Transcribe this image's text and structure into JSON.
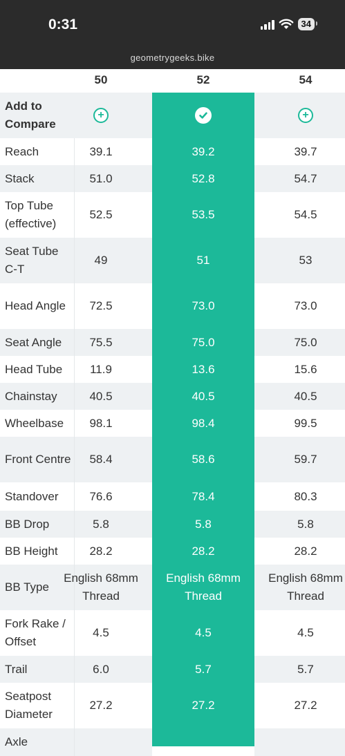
{
  "status": {
    "time": "0:31",
    "battery": "34",
    "url": "geometrygeeks.bike"
  },
  "columns": [
    "50",
    "52",
    "54"
  ],
  "compare": {
    "label_line1": "Add to",
    "label_line2": "Compare"
  },
  "rows": [
    {
      "label": "Reach",
      "values": [
        "39.1",
        "39.2",
        "39.7"
      ]
    },
    {
      "label": "Stack",
      "values": [
        "51.0",
        "52.8",
        "54.7"
      ]
    },
    {
      "label": "Top Tube (effective)",
      "values": [
        "52.5",
        "53.5",
        "54.5"
      ]
    },
    {
      "label": "Seat Tube C-T",
      "values": [
        "49",
        "51",
        "53"
      ]
    },
    {
      "label": "Head Angle",
      "values": [
        "72.5",
        "73.0",
        "73.0"
      ]
    },
    {
      "label": "Seat Angle",
      "values": [
        "75.5",
        "75.0",
        "75.0"
      ]
    },
    {
      "label": "Head Tube",
      "values": [
        "11.9",
        "13.6",
        "15.6"
      ]
    },
    {
      "label": "Chainstay",
      "values": [
        "40.5",
        "40.5",
        "40.5"
      ]
    },
    {
      "label": "Wheelbase",
      "values": [
        "98.1",
        "98.4",
        "99.5"
      ]
    },
    {
      "label": "Front Centre",
      "values": [
        "58.4",
        "58.6",
        "59.7"
      ]
    },
    {
      "label": "Standover",
      "values": [
        "76.6",
        "78.4",
        "80.3"
      ]
    },
    {
      "label": "BB Drop",
      "values": [
        "5.8",
        "5.8",
        "5.8"
      ]
    },
    {
      "label": "BB Height",
      "values": [
        "28.2",
        "28.2",
        "28.2"
      ]
    },
    {
      "label": "BB Type",
      "values": [
        "English 68mm Thread",
        "English 68mm Thread",
        "English 68mm Thread"
      ]
    },
    {
      "label": "Fork Rake / Offset",
      "values": [
        "4.5",
        "4.5",
        "4.5"
      ]
    },
    {
      "label": "Trail",
      "values": [
        "6.0",
        "5.7",
        "5.7"
      ]
    },
    {
      "label": "Seatpost Diameter",
      "values": [
        "27.2",
        "27.2",
        "27.2"
      ]
    },
    {
      "label": "Axle",
      "values": [
        "",
        "",
        ""
      ]
    }
  ]
}
